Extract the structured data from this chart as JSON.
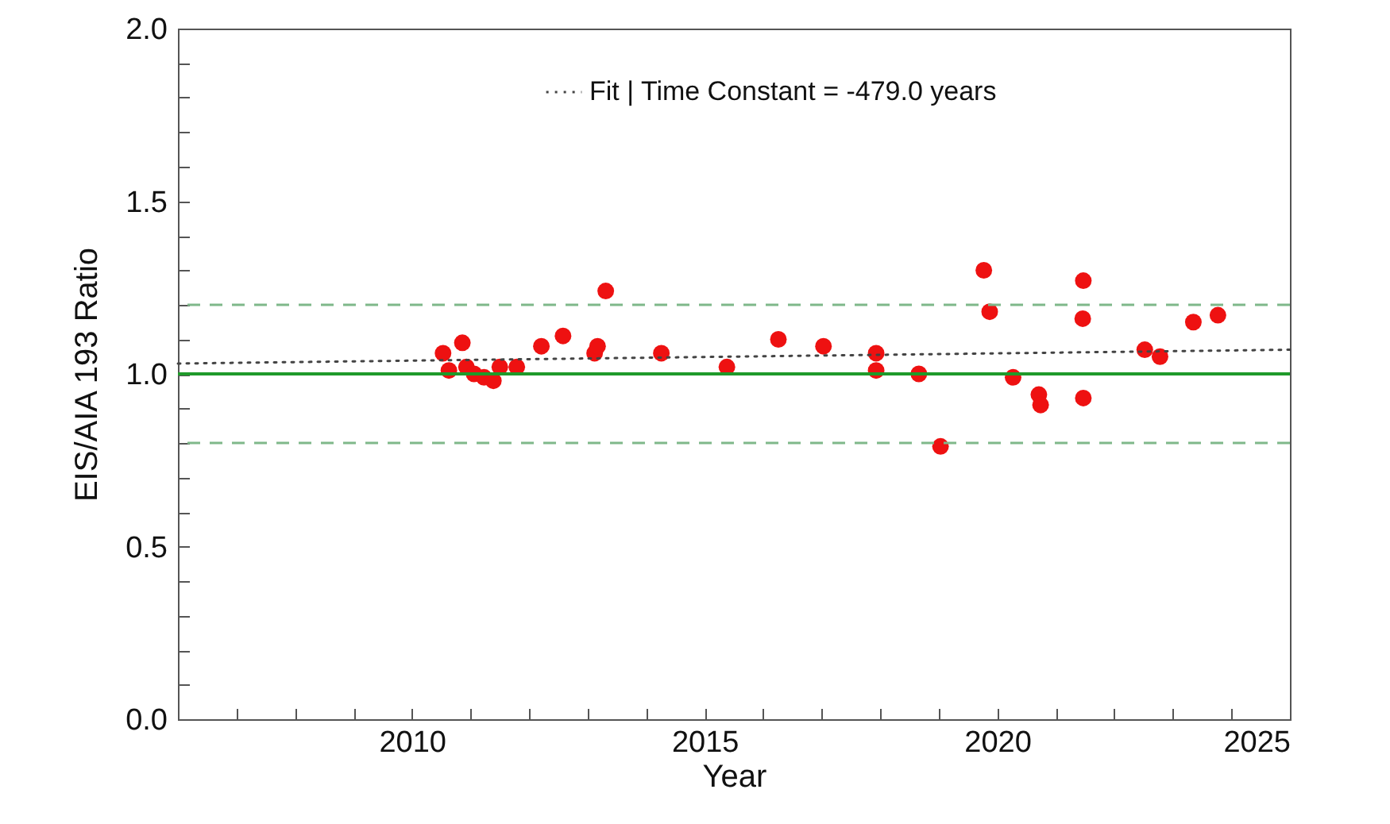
{
  "chart_data": {
    "type": "scatter",
    "xlabel": "Year",
    "ylabel": "EIS/AIA 193 Ratio",
    "xlim": [
      2006,
      2025
    ],
    "ylim": [
      0,
      2
    ],
    "xticks": [
      {
        "value": 2006,
        "label": null
      },
      {
        "value": 2007,
        "label": null
      },
      {
        "value": 2008,
        "label": null
      },
      {
        "value": 2009,
        "label": null
      },
      2010,
      {
        "value": 2011,
        "label": null
      },
      {
        "value": 2012,
        "label": null
      },
      {
        "value": 2013,
        "label": null
      },
      {
        "value": 2014,
        "label": null
      },
      2015,
      {
        "value": 2016,
        "label": null
      },
      {
        "value": 2017,
        "label": null
      },
      {
        "value": 2018,
        "label": null
      },
      {
        "value": 2019,
        "label": null
      },
      2020,
      {
        "value": 2021,
        "label": null
      },
      {
        "value": 2022,
        "label": null
      },
      {
        "value": 2023,
        "label": null
      },
      {
        "value": 2024,
        "label": null
      },
      2025
    ],
    "yticks": [
      {
        "value": 0,
        "label": "0.0"
      },
      {
        "value": 0.1,
        "label": null
      },
      {
        "value": 0.2,
        "label": null
      },
      {
        "value": 0.3,
        "label": null
      },
      {
        "value": 0.4,
        "label": null
      },
      {
        "value": 0.5,
        "label": "0.5"
      },
      {
        "value": 0.6,
        "label": null
      },
      {
        "value": 0.7,
        "label": null
      },
      {
        "value": 0.8,
        "label": null
      },
      {
        "value": 0.9,
        "label": null
      },
      {
        "value": 1,
        "label": "1.0"
      },
      {
        "value": 1.1,
        "label": null
      },
      {
        "value": 1.2,
        "label": null
      },
      {
        "value": 1.3,
        "label": null
      },
      {
        "value": 1.4,
        "label": null
      },
      {
        "value": 1.5,
        "label": "1.5"
      },
      {
        "value": 1.6,
        "label": null
      },
      {
        "value": 1.7,
        "label": null
      },
      {
        "value": 1.8,
        "label": null
      },
      {
        "value": 1.9,
        "label": null
      },
      {
        "value": 2,
        "label": "2.0"
      }
    ],
    "grid": false,
    "legend": "top",
    "marker": "circle",
    "series": [
      {
        "color": "#ee1111",
        "x": [
          2010.53,
          2010.63,
          2010.86,
          2010.93,
          2011.06,
          2011.23,
          2011.39,
          2011.5,
          2011.79,
          2012.21,
          2012.58,
          2013.12,
          2013.17,
          2013.31,
          2014.26,
          2015.38,
          2016.26,
          2017.03,
          2017.93,
          2017.93,
          2018.66,
          2019.03,
          2019.77,
          2019.87,
          2020.27,
          2020.71,
          2020.74,
          2021.47,
          2021.46,
          2021.47,
          2022.52,
          2022.78,
          2023.35,
          2023.77
        ],
        "values": [
          1.06,
          1.01,
          1.09,
          1.02,
          1.0,
          0.99,
          0.98,
          1.02,
          1.02,
          1.08,
          1.11,
          1.06,
          1.08,
          1.24,
          1.06,
          1.02,
          1.1,
          1.08,
          1.06,
          1.01,
          1.0,
          0.79,
          1.3,
          1.18,
          0.99,
          0.94,
          0.91,
          1.27,
          1.16,
          0.93,
          1.07,
          1.05,
          1.15,
          1.17
        ]
      },
      {
        "type": "line",
        "name": "Fit | Time Constant = -479.0 years",
        "color": "#444444",
        "line_style": "dotted",
        "marker": "none",
        "x": [
          2006,
          2025
        ],
        "values": [
          1.03,
          1.07
        ]
      }
    ],
    "ref_lines": [
      {
        "axis": "y",
        "value": 1.0,
        "color": "#1f9a2a",
        "line_style": "solid"
      },
      {
        "axis": "y",
        "value": 1.2,
        "color": "#7fb88a",
        "line_style": "dashed"
      },
      {
        "axis": "y",
        "value": 0.8,
        "color": "#7fb88a",
        "line_style": "dashed"
      }
    ]
  }
}
